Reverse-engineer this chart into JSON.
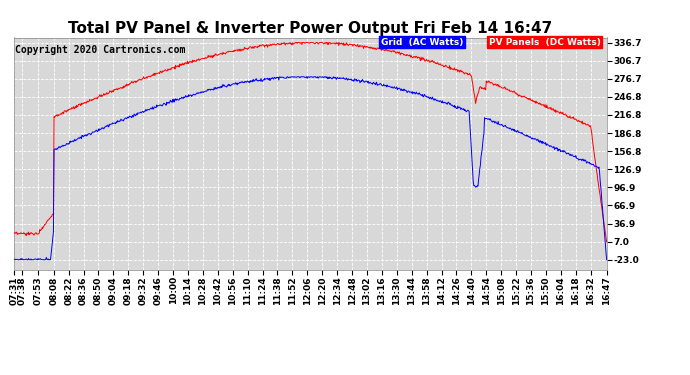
{
  "title": "Total PV Panel & Inverter Power Output Fri Feb 14 16:47",
  "copyright": "Copyright 2020 Cartronics.com",
  "legend_grid": "Grid  (AC Watts)",
  "legend_pv": "PV Panels  (DC Watts)",
  "yticks": [
    -23.0,
    7.0,
    36.9,
    66.9,
    96.9,
    126.9,
    156.8,
    186.8,
    216.8,
    246.8,
    276.7,
    306.7,
    336.7
  ],
  "ylim_min": -40,
  "ylim_max": 345,
  "background_color": "#ffffff",
  "plot_bg_color": "#d8d8d8",
  "grid_color": "#ffffff",
  "line_color_blue": "#0000ff",
  "line_color_red": "#ff0000",
  "title_fontsize": 11,
  "tick_fontsize": 6.5,
  "copyright_fontsize": 7
}
